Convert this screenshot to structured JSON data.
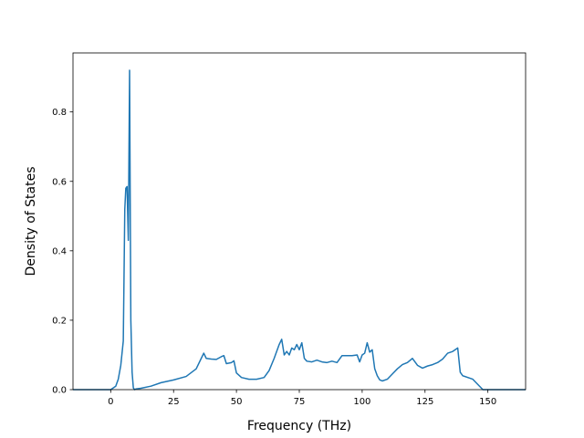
{
  "chart_data": {
    "type": "line",
    "title": "",
    "xlabel": "Frequency (THz)",
    "ylabel": "Density of States",
    "xlim": [
      -15,
      165
    ],
    "ylim": [
      0,
      0.97
    ],
    "xticks": [
      0,
      25,
      50,
      75,
      100,
      125,
      150
    ],
    "yticks": [
      0.0,
      0.2,
      0.4,
      0.6,
      0.8
    ],
    "ytick_labels": [
      "0.0",
      "0.2",
      "0.4",
      "0.6",
      "0.8"
    ],
    "grid": false,
    "legend": false,
    "series": [
      {
        "color": "#1f77b4",
        "x": [
          -15,
          -5,
          0,
          2,
          3,
          4,
          5,
          5.6,
          6,
          6.5,
          7,
          7.5,
          8,
          8.5,
          9,
          9.5,
          10,
          12,
          16,
          20,
          25,
          30,
          34,
          36,
          37,
          38,
          40,
          42,
          44,
          45,
          46,
          48,
          49,
          50,
          52,
          55,
          58,
          61,
          63,
          65,
          66,
          67,
          68,
          69,
          70,
          71,
          72,
          73,
          74,
          75,
          76,
          77,
          78,
          80,
          82,
          84,
          86,
          88,
          90,
          92,
          94,
          96,
          98,
          99,
          100,
          101,
          102,
          103,
          104,
          105,
          106,
          107,
          108,
          110,
          112,
          114,
          116,
          118,
          120,
          122,
          124,
          126,
          128,
          130,
          132,
          134,
          136,
          138,
          139,
          140,
          144,
          148,
          150,
          165
        ],
        "y": [
          0.0,
          0.0,
          0.0,
          0.01,
          0.03,
          0.07,
          0.14,
          0.52,
          0.58,
          0.585,
          0.43,
          0.92,
          0.2,
          0.05,
          0.005,
          0.0,
          0.002,
          0.004,
          0.01,
          0.02,
          0.028,
          0.038,
          0.06,
          0.09,
          0.105,
          0.09,
          0.088,
          0.087,
          0.095,
          0.098,
          0.075,
          0.078,
          0.083,
          0.048,
          0.035,
          0.03,
          0.03,
          0.035,
          0.055,
          0.09,
          0.11,
          0.13,
          0.145,
          0.1,
          0.11,
          0.1,
          0.12,
          0.115,
          0.13,
          0.115,
          0.135,
          0.09,
          0.082,
          0.08,
          0.085,
          0.08,
          0.078,
          0.082,
          0.078,
          0.098,
          0.098,
          0.098,
          0.1,
          0.08,
          0.1,
          0.105,
          0.135,
          0.108,
          0.115,
          0.06,
          0.04,
          0.028,
          0.025,
          0.03,
          0.045,
          0.06,
          0.072,
          0.078,
          0.09,
          0.07,
          0.062,
          0.068,
          0.072,
          0.078,
          0.088,
          0.105,
          0.11,
          0.12,
          0.05,
          0.04,
          0.03,
          0.0,
          0.0,
          0.0
        ]
      }
    ]
  }
}
